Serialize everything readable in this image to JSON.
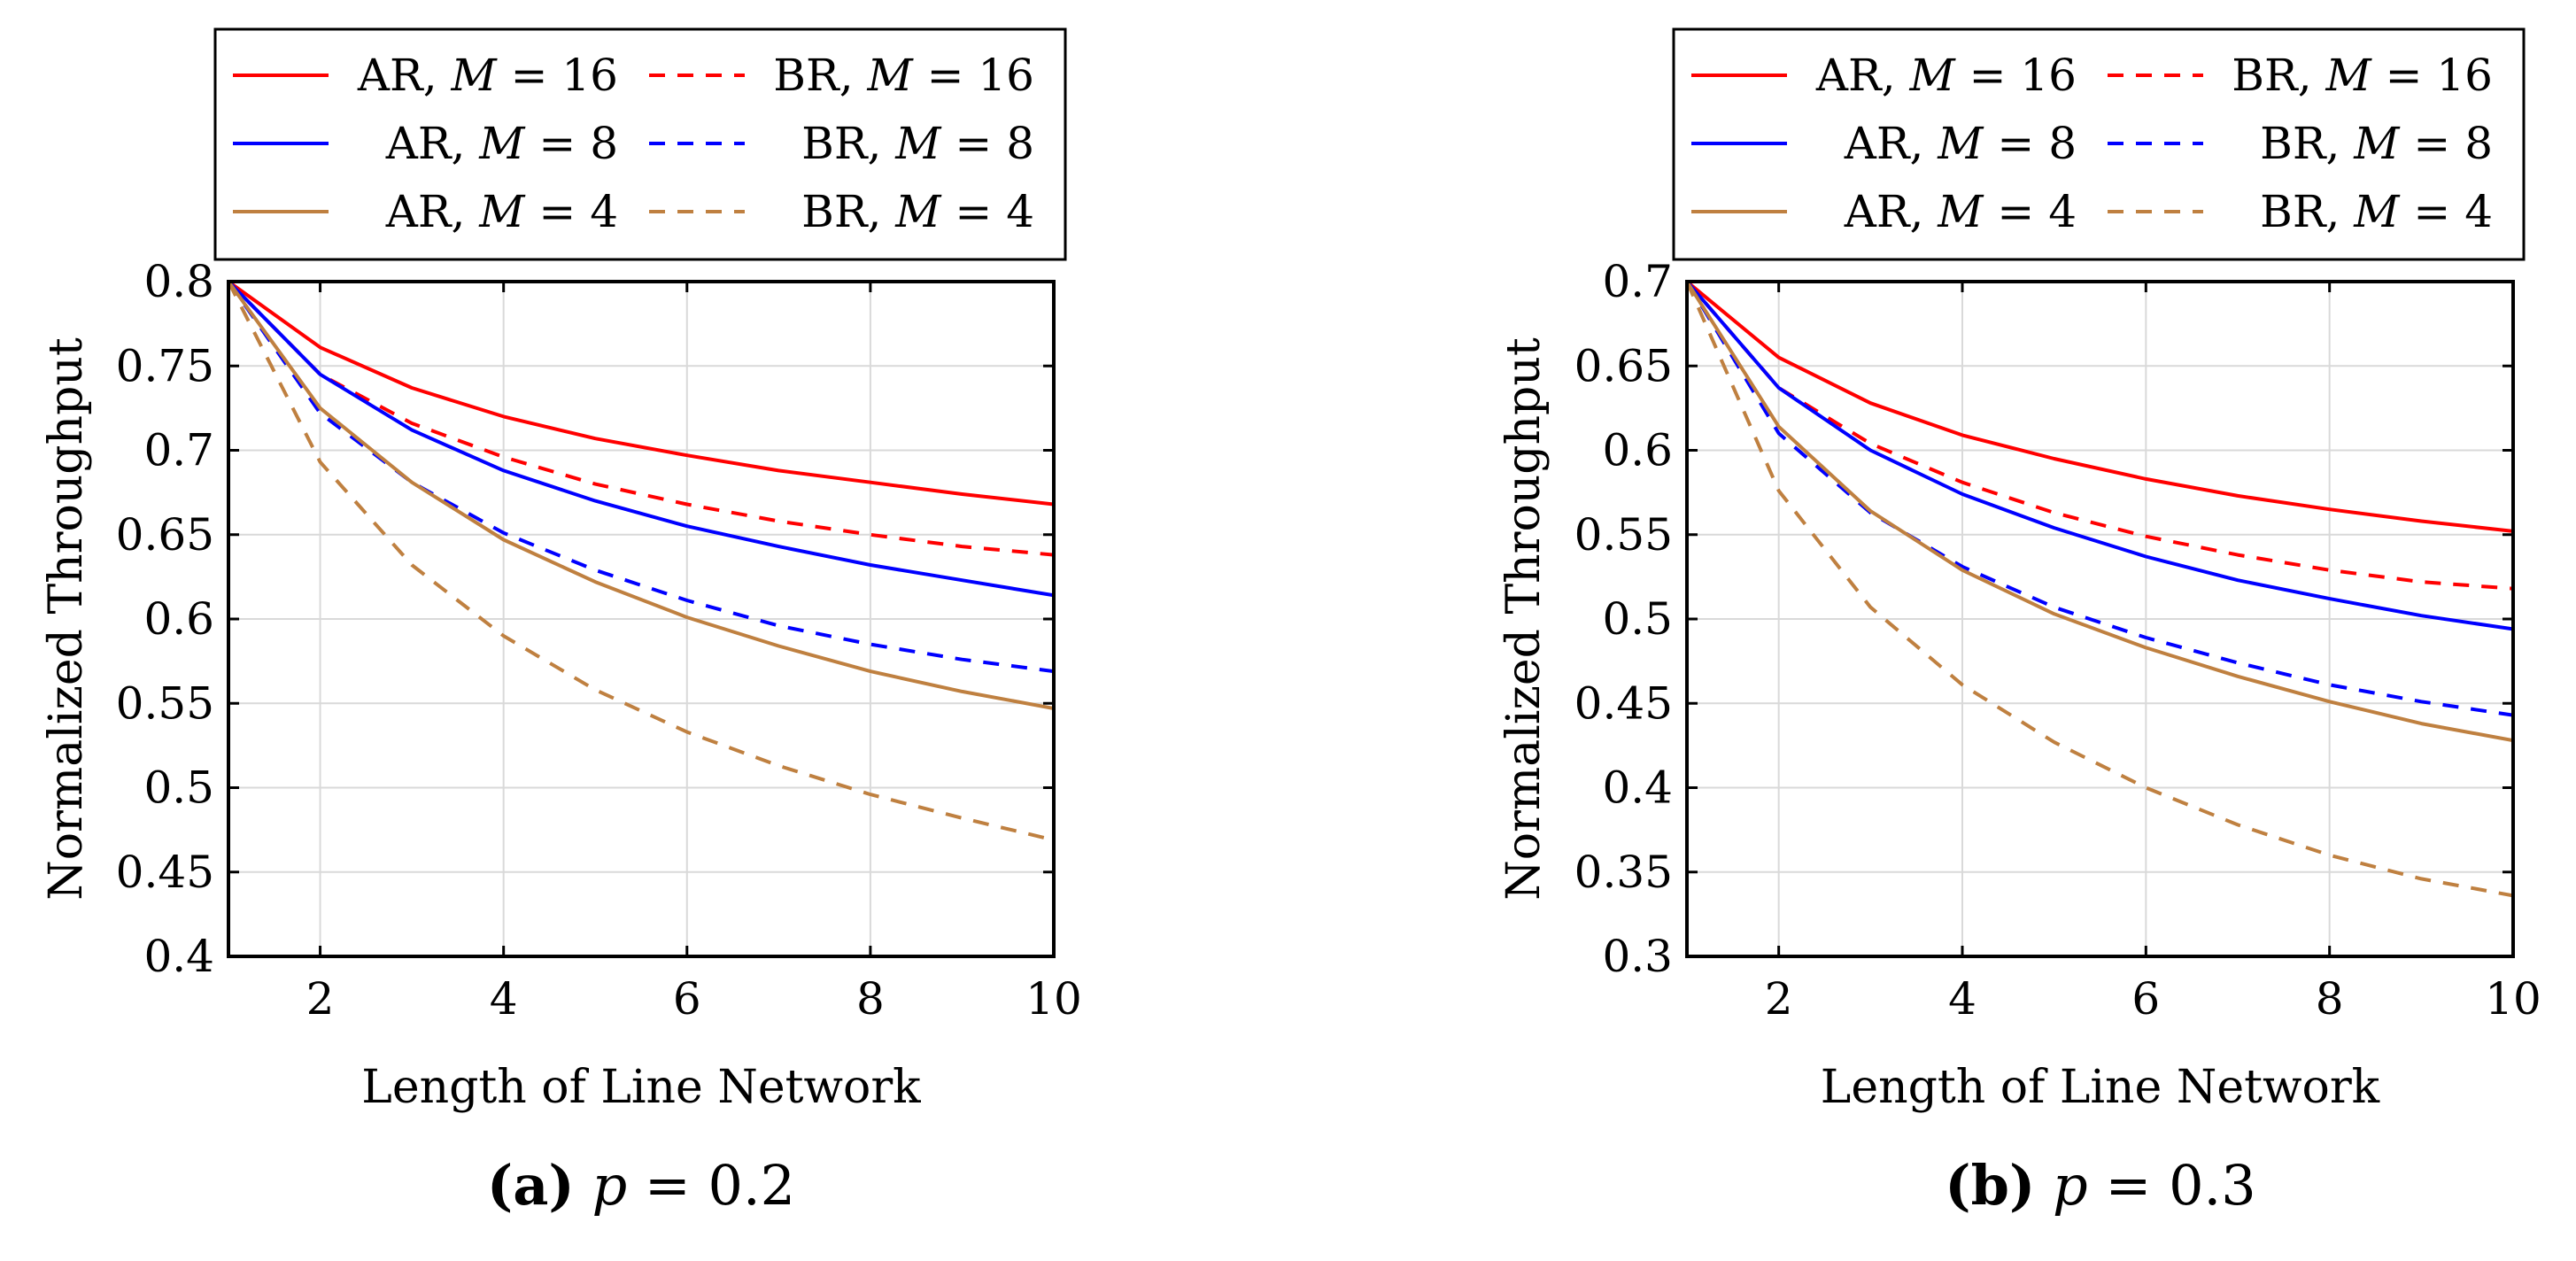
{
  "colors": {
    "red": "#ff0000",
    "blue": "#0000ff",
    "brown": "#bf8040",
    "grid": "#d9d9d9",
    "axis": "#000000"
  },
  "chart_data": [
    {
      "type": "line",
      "panel": "a",
      "caption": {
        "label": "(a)",
        "variable": "p",
        "relation": " = ",
        "value": "0.2"
      },
      "xlabel": "Length of Line Network",
      "ylabel": "Normalized Throughput",
      "xlim": [
        1,
        10
      ],
      "ylim": [
        0.4,
        0.8
      ],
      "grid": true,
      "legend_position": "top",
      "x_ticks": [
        {
          "value": 2,
          "label": "2"
        },
        {
          "value": 4,
          "label": "4"
        },
        {
          "value": 6,
          "label": "6"
        },
        {
          "value": 8,
          "label": "8"
        },
        {
          "value": 10,
          "label": "10"
        }
      ],
      "y_ticks": [
        {
          "value": 0.4,
          "label": "0.4"
        },
        {
          "value": 0.45,
          "label": "0.45"
        },
        {
          "value": 0.5,
          "label": "0.5"
        },
        {
          "value": 0.55,
          "label": "0.55"
        },
        {
          "value": 0.6,
          "label": "0.6"
        },
        {
          "value": 0.65,
          "label": "0.65"
        },
        {
          "value": 0.7,
          "label": "0.7"
        },
        {
          "value": 0.75,
          "label": "0.75"
        },
        {
          "value": 0.8,
          "label": "0.8"
        }
      ],
      "x": [
        1,
        2,
        3,
        4,
        5,
        6,
        7,
        8,
        9,
        10
      ],
      "series": [
        {
          "name": "AR, M = 16",
          "scheme": "AR",
          "m": "16",
          "color": "red",
          "dash": false,
          "values": [
            0.8,
            0.761,
            0.737,
            0.72,
            0.707,
            0.697,
            0.688,
            0.681,
            0.674,
            0.668
          ]
        },
        {
          "name": "BR, M = 16",
          "scheme": "BR",
          "m": "16",
          "color": "red",
          "dash": true,
          "values": [
            0.8,
            0.745,
            0.716,
            0.696,
            0.68,
            0.668,
            0.658,
            0.65,
            0.643,
            0.638
          ]
        },
        {
          "name": "AR, M = 8",
          "scheme": "AR",
          "m": "8",
          "color": "blue",
          "dash": false,
          "values": [
            0.8,
            0.745,
            0.712,
            0.688,
            0.67,
            0.655,
            0.643,
            0.632,
            0.623,
            0.614
          ]
        },
        {
          "name": "BR, M = 8",
          "scheme": "BR",
          "m": "8",
          "color": "blue",
          "dash": true,
          "values": [
            0.8,
            0.722,
            0.681,
            0.651,
            0.629,
            0.611,
            0.596,
            0.585,
            0.576,
            0.569
          ]
        },
        {
          "name": "AR, M = 4",
          "scheme": "AR",
          "m": "4",
          "color": "brown",
          "dash": false,
          "values": [
            0.8,
            0.725,
            0.681,
            0.647,
            0.622,
            0.601,
            0.584,
            0.569,
            0.557,
            0.547
          ]
        },
        {
          "name": "BR, M = 4",
          "scheme": "BR",
          "m": "4",
          "color": "brown",
          "dash": true,
          "values": [
            0.8,
            0.693,
            0.632,
            0.59,
            0.558,
            0.533,
            0.513,
            0.496,
            0.482,
            0.469
          ]
        }
      ]
    },
    {
      "type": "line",
      "panel": "b",
      "caption": {
        "label": "(b)",
        "variable": "p",
        "relation": " = ",
        "value": "0.3"
      },
      "xlabel": "Length of Line Network",
      "ylabel": "Normalized Throughput",
      "xlim": [
        1,
        10
      ],
      "ylim": [
        0.3,
        0.7
      ],
      "grid": true,
      "legend_position": "top",
      "x_ticks": [
        {
          "value": 2,
          "label": "2"
        },
        {
          "value": 4,
          "label": "4"
        },
        {
          "value": 6,
          "label": "6"
        },
        {
          "value": 8,
          "label": "8"
        },
        {
          "value": 10,
          "label": "10"
        }
      ],
      "y_ticks": [
        {
          "value": 0.3,
          "label": "0.3"
        },
        {
          "value": 0.35,
          "label": "0.35"
        },
        {
          "value": 0.4,
          "label": "0.4"
        },
        {
          "value": 0.45,
          "label": "0.45"
        },
        {
          "value": 0.5,
          "label": "0.5"
        },
        {
          "value": 0.55,
          "label": "0.55"
        },
        {
          "value": 0.6,
          "label": "0.6"
        },
        {
          "value": 0.65,
          "label": "0.65"
        },
        {
          "value": 0.7,
          "label": "0.7"
        }
      ],
      "x": [
        1,
        2,
        3,
        4,
        5,
        6,
        7,
        8,
        9,
        10
      ],
      "series": [
        {
          "name": "AR, M = 16",
          "scheme": "AR",
          "m": "16",
          "color": "red",
          "dash": false,
          "values": [
            0.7,
            0.655,
            0.628,
            0.609,
            0.595,
            0.583,
            0.573,
            0.565,
            0.558,
            0.552
          ]
        },
        {
          "name": "BR, M = 16",
          "scheme": "BR",
          "m": "16",
          "color": "red",
          "dash": true,
          "values": [
            0.7,
            0.637,
            0.604,
            0.581,
            0.563,
            0.549,
            0.538,
            0.529,
            0.522,
            0.518
          ]
        },
        {
          "name": "AR, M = 8",
          "scheme": "AR",
          "m": "8",
          "color": "blue",
          "dash": false,
          "values": [
            0.7,
            0.637,
            0.6,
            0.574,
            0.554,
            0.537,
            0.523,
            0.512,
            0.502,
            0.494
          ]
        },
        {
          "name": "BR, M = 8",
          "scheme": "BR",
          "m": "8",
          "color": "blue",
          "dash": true,
          "values": [
            0.7,
            0.61,
            0.563,
            0.531,
            0.507,
            0.489,
            0.474,
            0.461,
            0.451,
            0.443
          ]
        },
        {
          "name": "AR, M = 4",
          "scheme": "AR",
          "m": "4",
          "color": "brown",
          "dash": false,
          "values": [
            0.7,
            0.614,
            0.564,
            0.529,
            0.503,
            0.483,
            0.466,
            0.451,
            0.438,
            0.428
          ]
        },
        {
          "name": "BR, M = 4",
          "scheme": "BR",
          "m": "4",
          "color": "brown",
          "dash": true,
          "values": [
            0.7,
            0.576,
            0.507,
            0.461,
            0.427,
            0.4,
            0.378,
            0.36,
            0.346,
            0.336
          ]
        }
      ]
    }
  ]
}
